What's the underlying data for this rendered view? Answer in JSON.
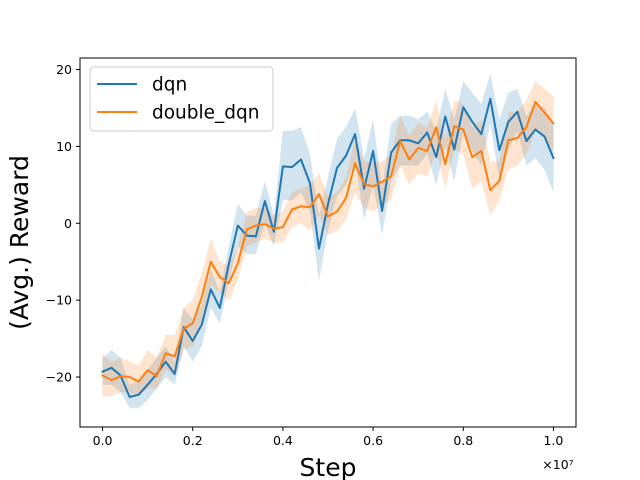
{
  "chart_data": {
    "type": "line",
    "title": "",
    "xlabel": "Step",
    "ylabel": "(Avg.) Reward",
    "x_offset_label": "×10⁷",
    "xlim": [
      -0.05,
      1.05
    ],
    "ylim": [
      -26.5,
      21.5
    ],
    "xticks": [
      0.0,
      0.2,
      0.4,
      0.6,
      0.8,
      1.0
    ],
    "xtick_labels": [
      "0.0",
      "0.2",
      "0.4",
      "0.6",
      "0.8",
      "1.0"
    ],
    "yticks": [
      -20,
      -10,
      0,
      10,
      20
    ],
    "ytick_labels": [
      "−20",
      "−10",
      "0",
      "10",
      "20"
    ],
    "grid": false,
    "legend_position": "top-left",
    "x": [
      0.0,
      0.02,
      0.04,
      0.06,
      0.08,
      0.1,
      0.12,
      0.14,
      0.16,
      0.18,
      0.2,
      0.22,
      0.24,
      0.26,
      0.28,
      0.3,
      0.32,
      0.34,
      0.36,
      0.38,
      0.4,
      0.42,
      0.44,
      0.46,
      0.48,
      0.5,
      0.52,
      0.54,
      0.56,
      0.58,
      0.6,
      0.62,
      0.64,
      0.66,
      0.68,
      0.7,
      0.72,
      0.74,
      0.76,
      0.78,
      0.8,
      0.82,
      0.84,
      0.86,
      0.88,
      0.9,
      0.92,
      0.94,
      0.96,
      0.98,
      1.0
    ],
    "series": [
      {
        "name": "dqn",
        "color": "#1f77b4",
        "band_color": "#1f77b4",
        "values": [
          -19.3,
          -18.8,
          -19.8,
          -22.6,
          -22.3,
          -21.0,
          -19.6,
          -18.0,
          -19.6,
          -13.5,
          -15.3,
          -13.2,
          -8.6,
          -11.0,
          -5.3,
          -0.3,
          -1.6,
          -1.7,
          2.9,
          -1.1,
          7.4,
          7.3,
          8.3,
          5.2,
          -3.3,
          2.5,
          7.2,
          8.8,
          11.6,
          4.5,
          9.4,
          1.6,
          9.2,
          10.8,
          10.8,
          10.4,
          11.8,
          8.6,
          13.9,
          9.6,
          15.1,
          13.2,
          11.6,
          16.2,
          9.5,
          13.2,
          14.5,
          10.7,
          12.2,
          11.3,
          8.5
        ],
        "lower": [
          -21.0,
          -21.0,
          -22.0,
          -24.0,
          -24.0,
          -23.0,
          -21.5,
          -20.0,
          -21.0,
          -16.0,
          -18.0,
          -16.0,
          -11.0,
          -13.0,
          -7.5,
          -3.0,
          -4.0,
          -4.0,
          0.0,
          -3.0,
          3.0,
          3.0,
          4.0,
          1.5,
          -7.5,
          -1.0,
          3.5,
          5.0,
          8.0,
          0.5,
          5.0,
          -1.5,
          5.5,
          7.5,
          7.5,
          7.5,
          9.0,
          5.0,
          10.0,
          5.5,
          12.0,
          9.5,
          7.5,
          13.0,
          5.5,
          9.5,
          12.0,
          7.5,
          8.5,
          7.0,
          4.0
        ],
        "upper": [
          -17.5,
          -16.5,
          -17.5,
          -21.0,
          -20.5,
          -19.0,
          -17.5,
          -16.0,
          -18.0,
          -11.0,
          -12.5,
          -10.5,
          -6.0,
          -9.0,
          -3.0,
          2.5,
          1.0,
          1.0,
          5.5,
          1.0,
          12.0,
          12.0,
          12.5,
          9.0,
          1.0,
          6.0,
          11.0,
          12.5,
          15.0,
          8.5,
          13.5,
          4.5,
          13.0,
          14.0,
          14.0,
          13.5,
          14.5,
          12.0,
          17.5,
          13.5,
          18.5,
          17.0,
          15.5,
          19.5,
          13.5,
          17.0,
          17.5,
          14.0,
          15.5,
          15.0,
          13.0
        ]
      },
      {
        "name": "double_dqn",
        "color": "#ff7f0e",
        "band_color": "#ff7f0e",
        "values": [
          -19.8,
          -20.4,
          -19.9,
          -20.0,
          -20.6,
          -19.1,
          -19.9,
          -16.9,
          -17.3,
          -13.7,
          -13.0,
          -9.6,
          -5.0,
          -7.0,
          -7.8,
          -5.2,
          -0.8,
          -0.3,
          -0.1,
          -0.7,
          -0.5,
          1.8,
          2.2,
          2.1,
          3.8,
          0.9,
          1.5,
          3.3,
          7.8,
          5.1,
          4.8,
          5.4,
          6.1,
          10.7,
          8.3,
          9.8,
          9.4,
          12.5,
          7.7,
          12.6,
          12.2,
          8.6,
          9.4,
          4.3,
          5.5,
          10.8,
          11.1,
          12.5,
          15.8,
          14.4,
          13.0
        ],
        "lower": [
          -22.5,
          -22.5,
          -22.0,
          -22.0,
          -22.5,
          -21.5,
          -21.5,
          -19.0,
          -20.0,
          -16.5,
          -16.0,
          -13.0,
          -8.0,
          -9.0,
          -10.0,
          -7.5,
          -3.0,
          -2.5,
          -2.0,
          -2.5,
          -2.5,
          -0.5,
          0.0,
          -1.0,
          1.0,
          -1.5,
          -1.0,
          0.5,
          4.0,
          2.0,
          1.5,
          2.5,
          3.0,
          7.5,
          5.0,
          6.5,
          6.0,
          9.5,
          4.5,
          9.5,
          9.0,
          4.5,
          5.5,
          1.0,
          3.0,
          7.0,
          7.5,
          9.0,
          12.0,
          11.0,
          9.5
        ],
        "upper": [
          -17.0,
          -18.0,
          -17.5,
          -18.0,
          -18.5,
          -16.5,
          -17.5,
          -14.5,
          -14.5,
          -11.0,
          -10.0,
          -6.5,
          -2.0,
          -5.0,
          -5.5,
          -3.0,
          1.5,
          2.0,
          2.0,
          1.0,
          1.5,
          4.0,
          4.5,
          5.0,
          6.5,
          3.5,
          4.0,
          6.0,
          11.0,
          8.0,
          8.0,
          8.0,
          9.0,
          14.0,
          11.5,
          13.0,
          12.5,
          16.0,
          11.0,
          16.0,
          15.5,
          12.5,
          13.5,
          8.0,
          8.0,
          14.5,
          14.5,
          16.0,
          18.5,
          17.5,
          16.5
        ]
      }
    ]
  }
}
